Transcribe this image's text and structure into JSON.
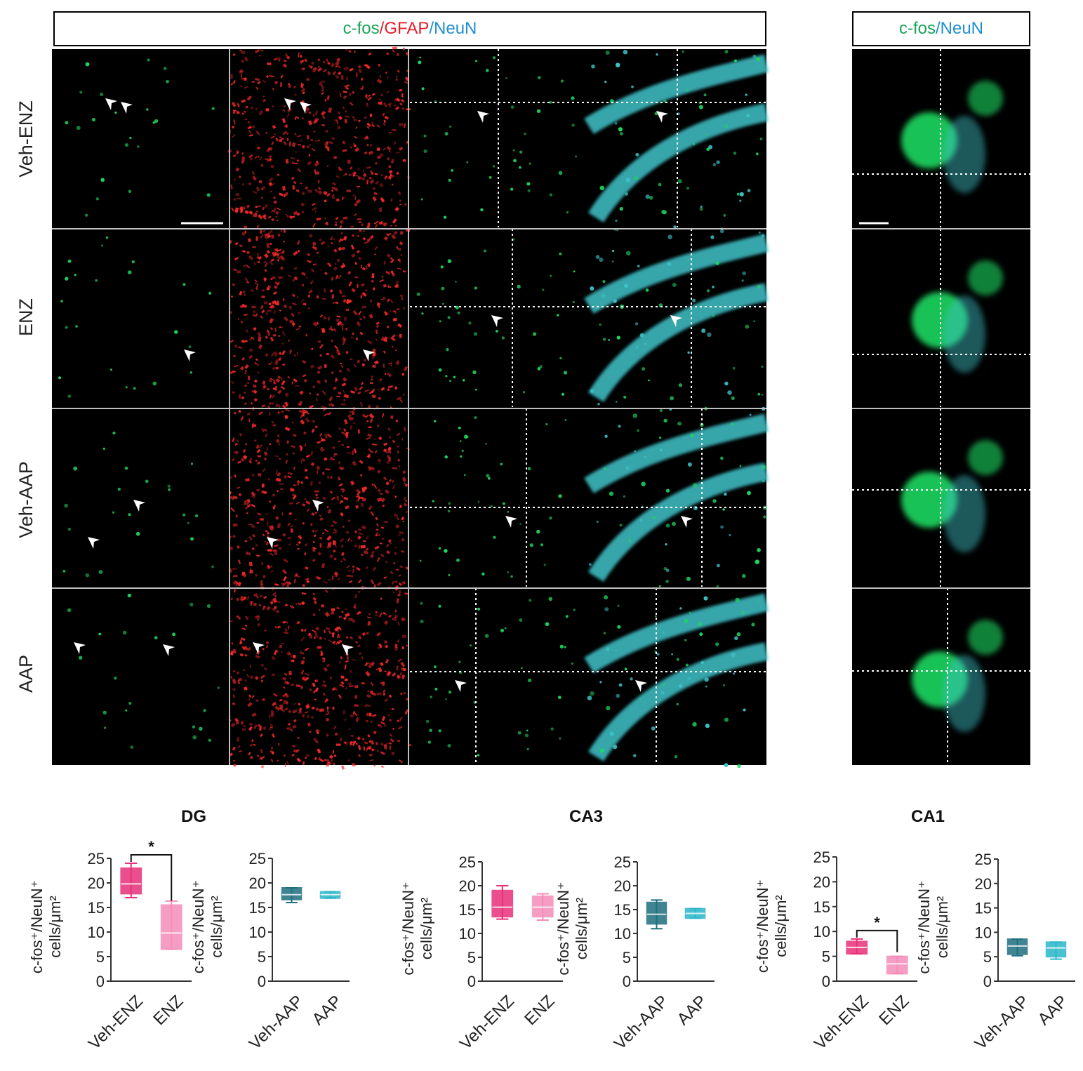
{
  "header": {
    "main_channels": [
      {
        "text": "c-fos",
        "color": "#1aa35a"
      },
      {
        "text": "/",
        "color": "#e0202a"
      },
      {
        "text": "GFAP",
        "color": "#e0202a"
      },
      {
        "text": "/",
        "color": "#1f8fd0"
      },
      {
        "text": "NeuN",
        "color": "#1f8fd0"
      }
    ],
    "inset_channels": [
      {
        "text": "c-fos",
        "color": "#1aa35a"
      },
      {
        "text": "/",
        "color": "#1f8fd0"
      },
      {
        "text": "NeuN",
        "color": "#1f8fd0"
      }
    ]
  },
  "row_labels": [
    "Veh-ENZ",
    "ENZ",
    "Veh-AAP",
    "AAP"
  ],
  "panel_colors": {
    "green": "#1ed760",
    "red": "#ff2a2a",
    "cyan": "#3fc3c9",
    "black": "#000000",
    "divider": "#bfbfbf"
  },
  "chart_data": [
    {
      "type": "box",
      "region": "DG",
      "ylabel_line1": "c-fos⁺/NeuN⁺",
      "ylabel_line2": "cells/μm²",
      "ylim": [
        0,
        25
      ],
      "yticks": [
        "0",
        "5",
        "10",
        "15",
        "20",
        "25"
      ],
      "categories": [
        "Veh-ENZ",
        "ENZ"
      ],
      "boxes": [
        {
          "min": 17,
          "q1": 17.8,
          "median": 19.8,
          "q3": 23,
          "max": 24,
          "color": "#e8307a"
        },
        {
          "min": 6.5,
          "q1": 6.5,
          "median": 9.8,
          "q3": 15.5,
          "max": 16.3,
          "color": "#f48cb8"
        }
      ],
      "significance": "*"
    },
    {
      "type": "box",
      "region": "",
      "ylabel_line1": "c-fos⁺/NeuN⁺",
      "ylabel_line2": "cells/μm²",
      "ylim": [
        0,
        25
      ],
      "yticks": [
        "0",
        "5",
        "10",
        "15",
        "20",
        "25"
      ],
      "categories": [
        "Veh-AAP",
        "AAP"
      ],
      "boxes": [
        {
          "min": 16,
          "q1": 16.6,
          "median": 17.6,
          "q3": 19,
          "max": 19,
          "color": "#1f6f80"
        },
        {
          "min": 16.9,
          "q1": 16.9,
          "median": 17.6,
          "q3": 18.2,
          "max": 18.2,
          "color": "#2bb7c9"
        }
      ],
      "significance": ""
    },
    {
      "type": "box",
      "region": "CA3",
      "ylabel_line1": "c-fos⁺/NeuN⁺",
      "ylabel_line2": "cells/μm²",
      "ylim": [
        0,
        25
      ],
      "yticks": [
        "0",
        "5",
        "10",
        "15",
        "20",
        "25"
      ],
      "categories": [
        "Veh-ENZ",
        "ENZ"
      ],
      "boxes": [
        {
          "min": 13,
          "q1": 13.5,
          "median": 15.5,
          "q3": 19,
          "max": 20,
          "color": "#e8307a"
        },
        {
          "min": 12.8,
          "q1": 13.5,
          "median": 15.5,
          "q3": 17.8,
          "max": 18.3,
          "color": "#f48cb8"
        }
      ],
      "significance": ""
    },
    {
      "type": "box",
      "region": "",
      "ylabel_line1": "c-fos⁺/NeuN⁺",
      "ylabel_line2": "cells/μm²",
      "ylim": [
        0,
        25
      ],
      "yticks": [
        "0",
        "5",
        "10",
        "15",
        "20",
        "25"
      ],
      "categories": [
        "Veh-AAP",
        "AAP"
      ],
      "boxes": [
        {
          "min": 11,
          "q1": 12,
          "median": 14,
          "q3": 16.5,
          "max": 17,
          "color": "#1f6f80"
        },
        {
          "min": 13.2,
          "q1": 13.2,
          "median": 14.2,
          "q3": 15.2,
          "max": 15.2,
          "color": "#2bb7c9"
        }
      ],
      "significance": ""
    },
    {
      "type": "box",
      "region": "CA1",
      "ylabel_line1": "c-fos⁺/NeuN⁺",
      "ylabel_line2": "cells/μm²",
      "ylim": [
        0,
        25
      ],
      "yticks": [
        "0",
        "5",
        "10",
        "15",
        "20",
        "25"
      ],
      "categories": [
        "Veh-ENZ",
        "ENZ"
      ],
      "boxes": [
        {
          "min": 5.5,
          "q1": 5.5,
          "median": 6.8,
          "q3": 8,
          "max": 8.5,
          "color": "#e8307a"
        },
        {
          "min": 1.5,
          "q1": 1.5,
          "median": 3.5,
          "q3": 5,
          "max": 5,
          "color": "#f48cb8"
        }
      ],
      "significance": "*"
    },
    {
      "type": "box",
      "region": "",
      "ylabel_line1": "c-fos⁺/NeuN⁺",
      "ylabel_line2": "cells/μm²",
      "ylim": [
        0,
        25
      ],
      "yticks": [
        "0",
        "5",
        "10",
        "15",
        "20",
        "25"
      ],
      "categories": [
        "Veh-AAP",
        "AAP"
      ],
      "boxes": [
        {
          "min": 5.2,
          "q1": 5.5,
          "median": 7.2,
          "q3": 8.6,
          "max": 8.6,
          "color": "#1f6f80"
        },
        {
          "min": 4.5,
          "q1": 5,
          "median": 6.8,
          "q3": 8,
          "max": 8,
          "color": "#2bb7c9"
        }
      ],
      "significance": ""
    }
  ]
}
